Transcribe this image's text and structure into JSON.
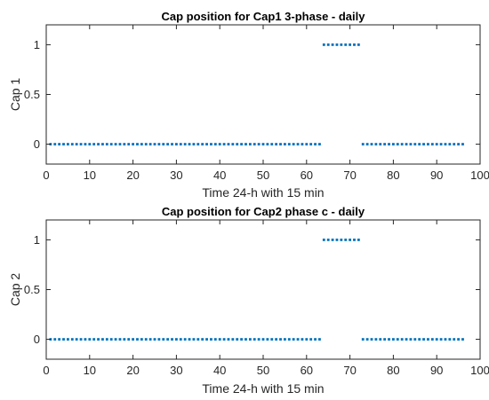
{
  "chart_data": [
    {
      "type": "scatter",
      "title": "Cap position for Cap1 3-phase - daily",
      "xlabel": "Time 24-h with 15 min",
      "ylabel": "Cap 1",
      "xlim": [
        0,
        100
      ],
      "ylim": [
        -0.2,
        1.2
      ],
      "xticks": [
        "0",
        "10",
        "20",
        "30",
        "40",
        "50",
        "60",
        "70",
        "80",
        "90",
        "100"
      ],
      "yticks": [
        "0",
        "0.5",
        "1"
      ],
      "grid": false,
      "series": [
        {
          "color": "#0072BD",
          "marker": "point",
          "segments": [
            {
              "x_start": 1,
              "x_end": 63,
              "y": 0
            },
            {
              "x_start": 64,
              "x_end": 72,
              "y": 1
            },
            {
              "x_start": 73,
              "x_end": 96,
              "y": 0
            }
          ]
        }
      ]
    },
    {
      "type": "scatter",
      "title": "Cap position for Cap2 phase c - daily",
      "xlabel": "Time 24-h with 15 min",
      "ylabel": "Cap 2",
      "xlim": [
        0,
        100
      ],
      "ylim": [
        -0.2,
        1.2
      ],
      "xticks": [
        "0",
        "10",
        "20",
        "30",
        "40",
        "50",
        "60",
        "70",
        "80",
        "90",
        "100"
      ],
      "yticks": [
        "0",
        "0.5",
        "1"
      ],
      "grid": false,
      "series": [
        {
          "color": "#0072BD",
          "marker": "point",
          "segments": [
            {
              "x_start": 1,
              "x_end": 63,
              "y": 0
            },
            {
              "x_start": 64,
              "x_end": 72,
              "y": 1
            },
            {
              "x_start": 73,
              "x_end": 96,
              "y": 0
            }
          ]
        }
      ]
    }
  ]
}
